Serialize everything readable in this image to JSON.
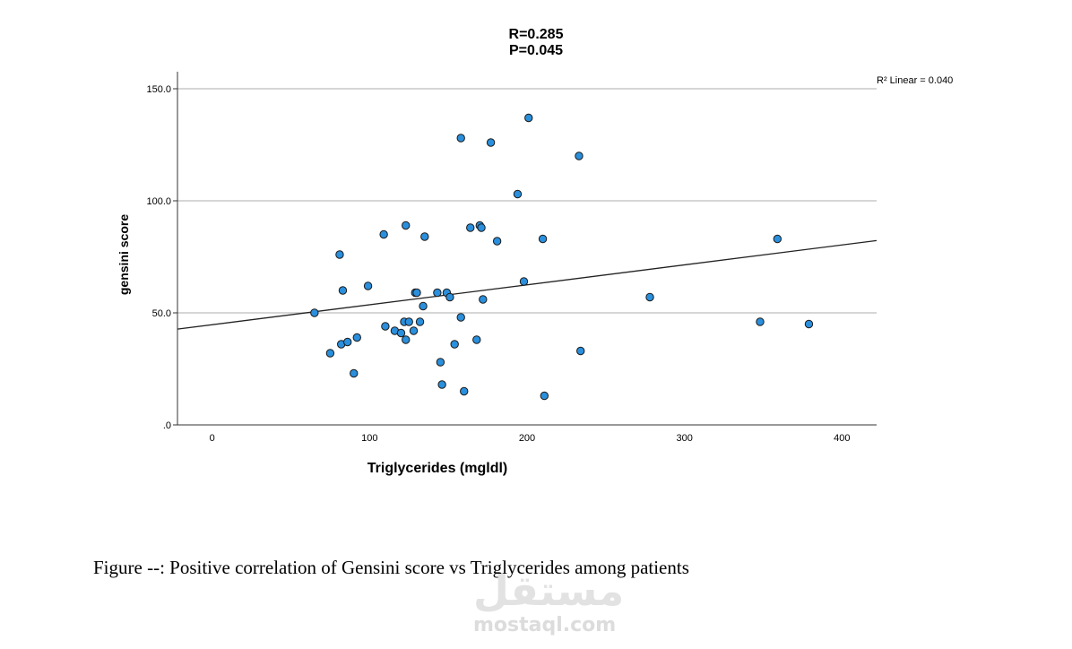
{
  "chart_data": {
    "type": "scatter",
    "title_lines": [
      "R=0.285",
      "P=0.045"
    ],
    "xlabel": "Triglycerides (mgldl)",
    "ylabel": "gensini score",
    "x_ticks": [
      "0",
      "100",
      "200",
      "300",
      "400"
    ],
    "y_ticks": [
      ".0",
      "50.0",
      "100.0",
      "150.0"
    ],
    "xlim": [
      -22,
      422
    ],
    "ylim": [
      0,
      150
    ],
    "grid": "horizontal",
    "fit_label": "R² Linear = 0.040",
    "fit_line": {
      "intercept": 44.7,
      "slope": 0.089
    },
    "marker_color": "#2a8fdc",
    "points": [
      [
        65,
        50
      ],
      [
        75,
        32
      ],
      [
        81,
        76
      ],
      [
        82,
        36
      ],
      [
        83,
        60
      ],
      [
        86,
        37
      ],
      [
        90,
        23
      ],
      [
        92,
        39
      ],
      [
        99,
        62
      ],
      [
        109,
        85
      ],
      [
        110,
        44
      ],
      [
        116,
        42
      ],
      [
        120,
        41
      ],
      [
        122,
        46
      ],
      [
        123,
        89
      ],
      [
        123,
        38
      ],
      [
        125,
        46
      ],
      [
        128,
        42
      ],
      [
        129,
        59
      ],
      [
        130,
        59
      ],
      [
        132,
        46
      ],
      [
        134,
        53
      ],
      [
        135,
        84
      ],
      [
        143,
        59
      ],
      [
        145,
        28
      ],
      [
        146,
        18
      ],
      [
        149,
        59
      ],
      [
        151,
        57
      ],
      [
        154,
        36
      ],
      [
        158,
        128
      ],
      [
        158,
        48
      ],
      [
        160,
        15
      ],
      [
        164,
        88
      ],
      [
        168,
        38
      ],
      [
        170,
        89
      ],
      [
        171,
        88
      ],
      [
        172,
        56
      ],
      [
        177,
        126
      ],
      [
        181,
        82
      ],
      [
        194,
        103
      ],
      [
        198,
        64
      ],
      [
        201,
        137
      ],
      [
        210,
        83
      ],
      [
        211,
        13
      ],
      [
        233,
        120
      ],
      [
        234,
        33
      ],
      [
        278,
        57
      ],
      [
        348,
        46
      ],
      [
        359,
        83
      ],
      [
        379,
        45
      ]
    ]
  },
  "caption": "Figure --: Positive correlation of Gensini score vs Triglycerides  among patients",
  "watermark": {
    "arabic": "مستقل",
    "latin": "mostaql.com"
  }
}
